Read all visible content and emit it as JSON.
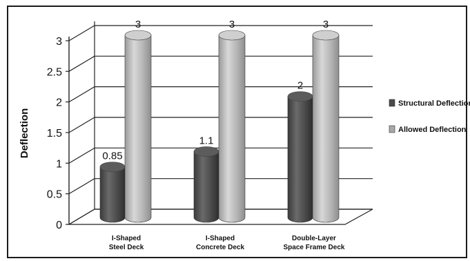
{
  "chart_data": {
    "type": "bar",
    "title": "",
    "xlabel": "",
    "ylabel": "Deflection",
    "ylim": [
      0,
      3
    ],
    "yticks": [
      "0",
      "0.5",
      "1",
      "1.5",
      "2",
      "2.5",
      "3"
    ],
    "categories": [
      [
        "I-Shaped",
        "Steel Deck"
      ],
      [
        "I-Shaped",
        "Concrete Deck"
      ],
      [
        "Double-Layer",
        "Space Frame Deck"
      ]
    ],
    "series": [
      {
        "name": "Structural Deflection",
        "values": [
          0.85,
          1.1,
          2
        ],
        "labels": [
          "0.85",
          "1.1",
          "2"
        ],
        "color": "#4a4a4a"
      },
      {
        "name": "Allowed Deflection",
        "values": [
          3,
          3,
          3
        ],
        "labels": [
          "3",
          "3",
          "3"
        ],
        "color": "#a8a8a8"
      }
    ],
    "grid": true,
    "legend": "right",
    "style": "3d-cylinder"
  }
}
